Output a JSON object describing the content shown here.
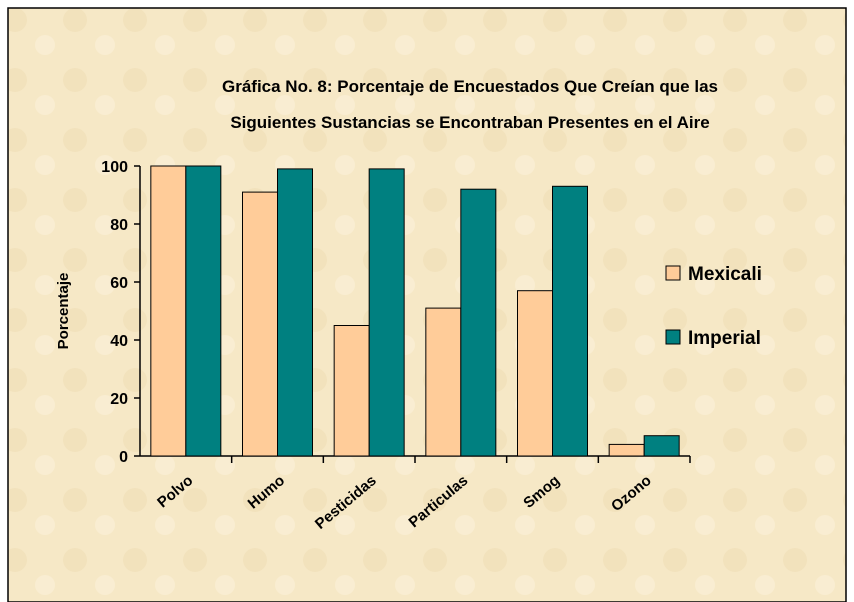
{
  "chart_data": {
    "type": "bar",
    "title": [
      "Gráfica No. 8:  Porcentaje de Encuestados Que Creían que las",
      "Siguientes Sustancias se Encontraban Presentes en el Aire"
    ],
    "y_label": "Porcentaje",
    "categories": [
      "Polvo",
      "Humo",
      "Pesticidas",
      "Particulas",
      "Smog",
      "Ozono"
    ],
    "series": [
      {
        "name": "Mexicali",
        "color": "#ffcc99",
        "values": [
          100,
          91,
          45,
          51,
          57,
          4
        ]
      },
      {
        "name": "Imperial",
        "color": "#008080",
        "values": [
          100,
          99,
          99,
          92,
          93,
          7
        ]
      }
    ],
    "ylim": [
      0,
      100
    ],
    "yticks": [
      0,
      20,
      40,
      60,
      80,
      100
    ],
    "grid": false,
    "legend": "right"
  }
}
